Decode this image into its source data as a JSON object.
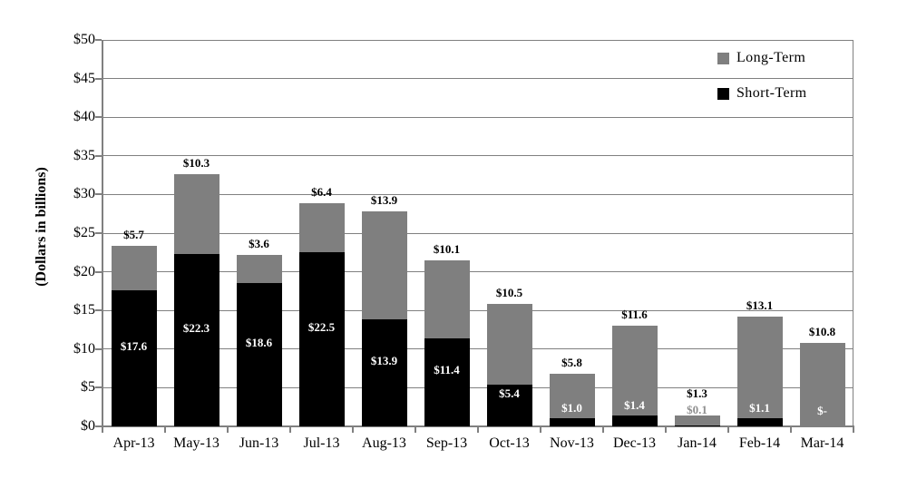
{
  "chart_data": {
    "type": "bar",
    "stacked": true,
    "ylabel": "(Dollars in billions)",
    "categories": [
      "Apr-13",
      "May-13",
      "Jun-13",
      "Jul-13",
      "Aug-13",
      "Sep-13",
      "Oct-13",
      "Nov-13",
      "Dec-13",
      "Jan-14",
      "Feb-14",
      "Mar-14"
    ],
    "series": [
      {
        "name": "Short-Term",
        "color": "#000000",
        "values": [
          17.6,
          22.3,
          18.6,
          22.5,
          13.9,
          11.4,
          5.4,
          1.0,
          1.4,
          0.1,
          1.1,
          0
        ],
        "labels": [
          "$17.6",
          "$22.3",
          "$18.6",
          "$22.5",
          "$13.9",
          "$11.4",
          "$5.4",
          "$1.0",
          "$1.4",
          "$0.1",
          "$1.1",
          "$-"
        ]
      },
      {
        "name": "Long-Term",
        "color": "#7F7F7F",
        "values": [
          5.7,
          10.3,
          3.6,
          6.4,
          13.9,
          10.1,
          10.5,
          5.8,
          11.6,
          1.3,
          13.1,
          10.8
        ],
        "labels": [
          "$5.7",
          "$10.3",
          "$3.6",
          "$6.4",
          "$13.9",
          "$10.1",
          "$10.5",
          "$5.8",
          "$11.6",
          "$1.3",
          "$13.1",
          "$10.8"
        ]
      }
    ],
    "totals": [
      23.3,
      32.6,
      22.2,
      28.9,
      27.8,
      21.5,
      15.9,
      6.8,
      13.0,
      1.4,
      14.2,
      10.8
    ],
    "ylim": [
      0,
      50
    ],
    "ytick_step": 5,
    "yticks": [
      "$0",
      "$5",
      "$10",
      "$15",
      "$20",
      "$25",
      "$30",
      "$35",
      "$40",
      "$45",
      "$50"
    ],
    "grid": true,
    "legend": {
      "position": "top-right",
      "items": [
        {
          "label": "Long-Term",
          "color": "#7F7F7F"
        },
        {
          "label": "Short-Term",
          "color": "#000000"
        }
      ]
    },
    "colors": {
      "grid": "#808080",
      "axis": "#808080",
      "label_dark": "#000000",
      "label_light": "#FFFFFF",
      "label_muted": "#909090",
      "background": "#FFFFFF"
    }
  }
}
